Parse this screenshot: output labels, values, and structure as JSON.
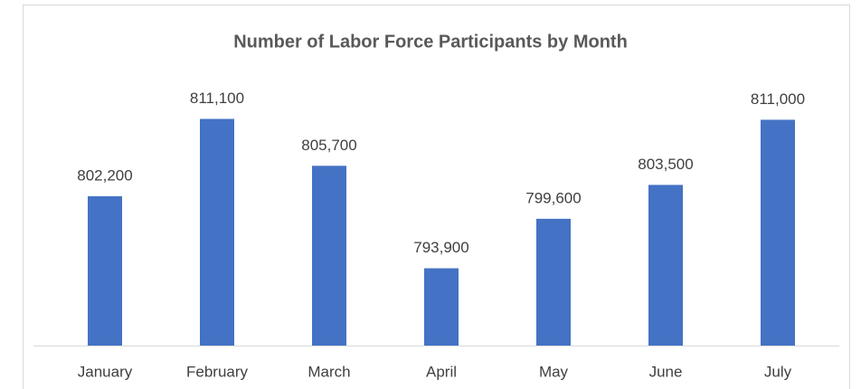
{
  "chart_data": {
    "type": "bar",
    "title": "Number of Labor Force Participants by Month",
    "categories": [
      "January",
      "February",
      "March",
      "April",
      "May",
      "June",
      "July"
    ],
    "values": [
      802200,
      811100,
      805700,
      793900,
      799600,
      803500,
      811000
    ],
    "value_labels": [
      "802,200",
      "811,100",
      "805,700",
      "793,900",
      "799,600",
      "803,500",
      "811,000"
    ],
    "color": "#4472c4",
    "ylim": [
      785000,
      815000
    ]
  }
}
